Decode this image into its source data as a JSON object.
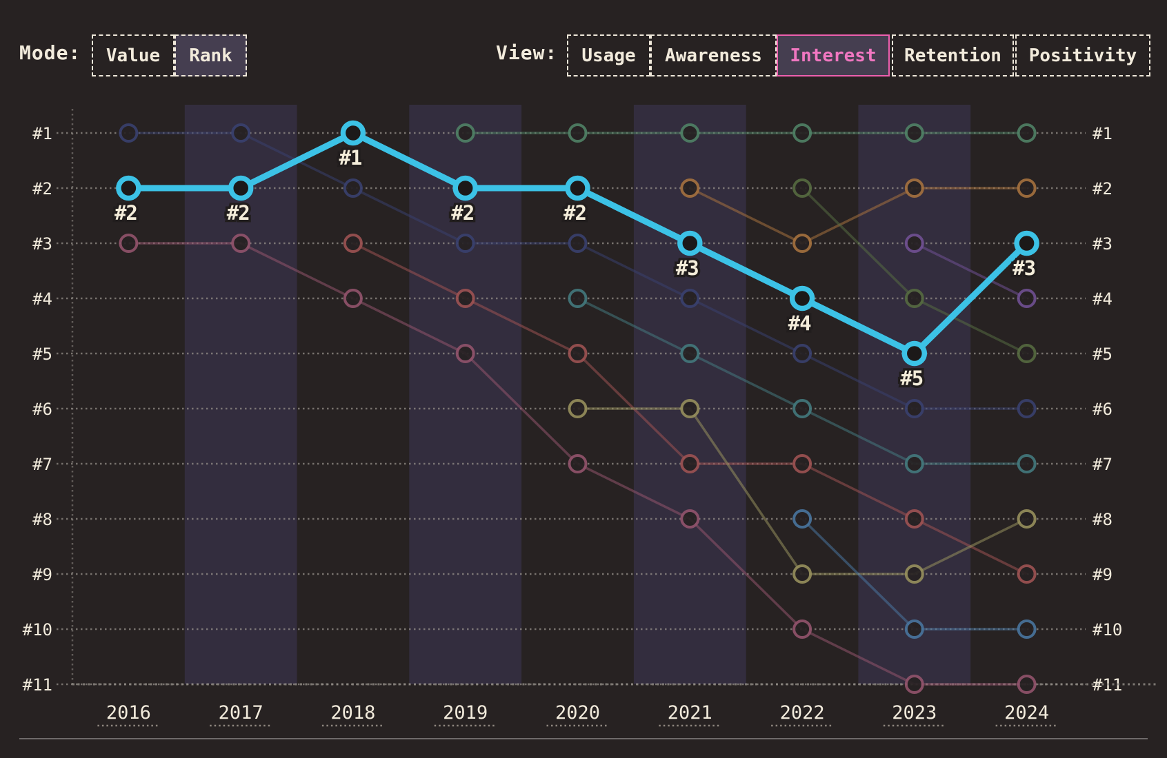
{
  "mode": {
    "label": "Mode:",
    "options": [
      {
        "label": "Value",
        "active": false
      },
      {
        "label": "Rank",
        "active": true
      }
    ]
  },
  "view": {
    "label": "View:",
    "selected": "Interest",
    "options": [
      {
        "label": "Usage",
        "active": false
      },
      {
        "label": "Awareness",
        "active": false
      },
      {
        "label": "Interest",
        "active": true
      },
      {
        "label": "Retention",
        "active": false
      },
      {
        "label": "Positivity",
        "active": false
      }
    ]
  },
  "colors": {
    "background": "#272222",
    "band": "#332d3e",
    "active_button_bg": "#453e50",
    "cream_text": "#f2ebdc",
    "pink_text": "#f177c1",
    "pink_border": "#ee5fae",
    "highlight": "#3cc2e6",
    "grid": "#938e88",
    "year_underline": "#a8a096",
    "separator": "#6e6a6a"
  },
  "chart_data": {
    "type": "line",
    "subtype": "bump-rank-chart",
    "x": [
      "2016",
      "2017",
      "2018",
      "2019",
      "2020",
      "2021",
      "2022",
      "2023",
      "2024"
    ],
    "y_axis_labels_left": [
      "#1",
      "#2",
      "#3",
      "#4",
      "#5",
      "#6",
      "#7",
      "#8",
      "#9",
      "#10",
      "#11"
    ],
    "y_axis_labels_right": [
      "#1",
      "#2",
      "#3",
      "#4",
      "#5",
      "#6",
      "#7",
      "#8",
      "#9",
      "#10",
      "#11"
    ],
    "y_range": [
      1,
      11
    ],
    "grid": "dotted-horizontal",
    "banded_columns": [
      "2017",
      "2019",
      "2021",
      "2023"
    ],
    "series": [
      {
        "name": "highlighted-series",
        "color": "#3cc2e6",
        "highlighted": true,
        "ranks": [
          2,
          2,
          1,
          2,
          2,
          3,
          4,
          5,
          3
        ],
        "point_labels": [
          "#2",
          "#2",
          "#1",
          "#2",
          "#2",
          "#3",
          "#4",
          "#5",
          "#3"
        ]
      },
      {
        "name": "navy-series",
        "color": "#39406e",
        "highlighted": false,
        "ranks": [
          1,
          1,
          2,
          3,
          3,
          4,
          5,
          6,
          6
        ]
      },
      {
        "name": "rose-series",
        "color": "#92536c",
        "highlighted": false,
        "ranks": [
          3,
          3,
          4,
          5,
          7,
          8,
          10,
          11,
          11
        ]
      },
      {
        "name": "red-series",
        "color": "#9d5252",
        "highlighted": false,
        "ranks": [
          null,
          null,
          3,
          4,
          5,
          7,
          7,
          8,
          9
        ]
      },
      {
        "name": "green-series",
        "color": "#4f8165",
        "highlighted": false,
        "ranks": [
          null,
          null,
          null,
          1,
          1,
          1,
          1,
          1,
          1
        ]
      },
      {
        "name": "teal-series",
        "color": "#43797d",
        "highlighted": false,
        "ranks": [
          null,
          null,
          null,
          null,
          4,
          5,
          6,
          7,
          7
        ]
      },
      {
        "name": "khaki-series",
        "color": "#968f5c",
        "highlighted": false,
        "ranks": [
          null,
          null,
          null,
          null,
          6,
          6,
          9,
          9,
          8
        ]
      },
      {
        "name": "orange-series",
        "color": "#a5713e",
        "highlighted": false,
        "ranks": [
          null,
          null,
          null,
          null,
          null,
          2,
          3,
          2,
          2
        ]
      },
      {
        "name": "darkgreen-series",
        "color": "#566b41",
        "highlighted": false,
        "ranks": [
          null,
          null,
          null,
          null,
          null,
          null,
          2,
          4,
          5
        ]
      },
      {
        "name": "blue-series",
        "color": "#49759e",
        "highlighted": false,
        "ranks": [
          null,
          null,
          null,
          null,
          null,
          null,
          8,
          10,
          10
        ]
      },
      {
        "name": "purple-series",
        "color": "#705093",
        "highlighted": false,
        "ranks": [
          null,
          null,
          null,
          null,
          null,
          null,
          null,
          3,
          4
        ]
      }
    ]
  }
}
